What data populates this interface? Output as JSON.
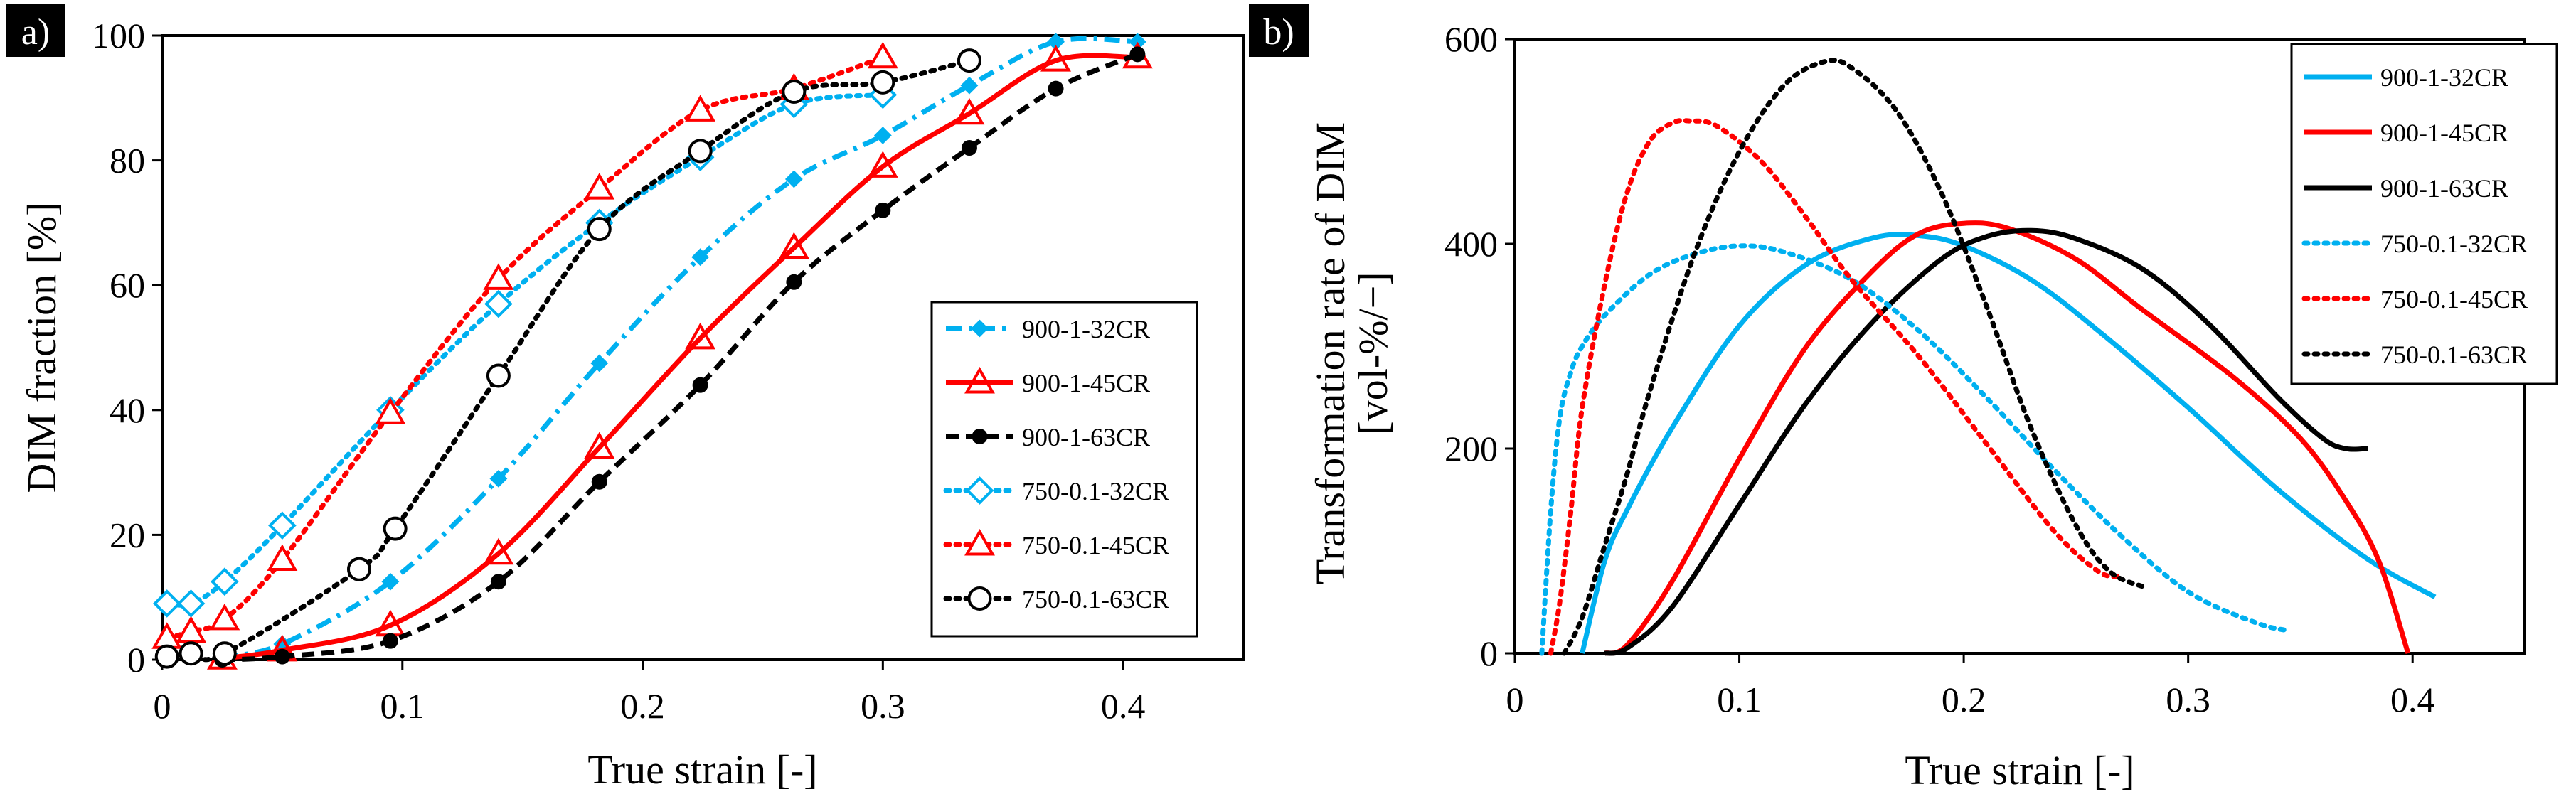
{
  "colors": {
    "blue": "#00b0f0",
    "red": "#ff0000",
    "black": "#000000"
  },
  "chart_data": [
    {
      "panel": "a)",
      "type": "line",
      "xlabel": "True strain [-]",
      "ylabel": "DIM fraction [%]",
      "xlim": [
        0,
        0.45
      ],
      "ylim": [
        0,
        100
      ],
      "xticks": [
        0,
        0.1,
        0.2,
        0.3,
        0.4
      ],
      "xtick_labels": [
        "0",
        "0.1",
        "0.2",
        "0.3",
        "0.4"
      ],
      "yticks": [
        0,
        20,
        40,
        60,
        80,
        100
      ],
      "ytick_labels": [
        "0",
        "20",
        "40",
        "60",
        "80",
        "100"
      ],
      "legend_position": "bottom-right",
      "series": [
        {
          "name": "900-1-32CR",
          "color": "blue",
          "dash": "dashdot",
          "marker": "diamond",
          "x": [
            0.025,
            0.05,
            0.095,
            0.14,
            0.182,
            0.224,
            0.263,
            0.3,
            0.336,
            0.372,
            0.406
          ],
          "y": [
            0.5,
            2.5,
            12.5,
            29,
            47.5,
            64.5,
            77,
            84,
            92,
            99,
            99
          ]
        },
        {
          "name": "900-1-45CR",
          "color": "red",
          "dash": "solid",
          "marker": "triangle",
          "x": [
            0.025,
            0.05,
            0.095,
            0.14,
            0.182,
            0.224,
            0.263,
            0.3,
            0.336,
            0.372,
            0.406
          ],
          "y": [
            0.2,
            1.5,
            5.5,
            17,
            34,
            51.5,
            66,
            79,
            87.5,
            96,
            96.5
          ]
        },
        {
          "name": "900-1-63CR",
          "color": "black",
          "dash": "dashed",
          "marker": "circle-filled",
          "x": [
            0.025,
            0.05,
            0.095,
            0.14,
            0.182,
            0.224,
            0.263,
            0.3,
            0.336,
            0.372,
            0.406
          ],
          "y": [
            0,
            0.5,
            3,
            12.5,
            28.5,
            44,
            60.5,
            72,
            82,
            91.5,
            97
          ]
        },
        {
          "name": "750-0.1-32CR",
          "color": "blue",
          "dash": "dotted",
          "marker": "diamond-open",
          "x": [
            0.002,
            0.012,
            0.026,
            0.05,
            0.095,
            0.14,
            0.182,
            0.224,
            0.263,
            0.3
          ],
          "y": [
            9,
            9,
            12.5,
            21.5,
            40,
            57,
            70,
            80.5,
            89,
            90.5
          ]
        },
        {
          "name": "750-0.1-45CR",
          "color": "red",
          "dash": "dotted",
          "marker": "triangle-open",
          "x": [
            0.002,
            0.012,
            0.026,
            0.05,
            0.095,
            0.14,
            0.182,
            0.224,
            0.263,
            0.3
          ],
          "y": [
            3.5,
            4.5,
            6.5,
            16,
            39.5,
            61,
            75.5,
            88,
            91.5,
            96.5
          ]
        },
        {
          "name": "750-0.1-63CR",
          "color": "black",
          "dash": "dotted",
          "marker": "circle-open",
          "x": [
            0.002,
            0.012,
            0.026,
            0.082,
            0.097,
            0.14,
            0.182,
            0.224,
            0.263,
            0.3,
            0.336
          ],
          "y": [
            0.5,
            1,
            1,
            14.5,
            21,
            45.5,
            69,
            81.5,
            91,
            92.5,
            96
          ]
        }
      ]
    },
    {
      "panel": "b)",
      "type": "line",
      "xlabel": "True strain [-]",
      "ylabel": "Transformation rate of DIM",
      "ylabel_units": "[vol-%/−]",
      "xlim": [
        0,
        0.45
      ],
      "ylim": [
        0,
        600
      ],
      "xticks": [
        0,
        0.1,
        0.2,
        0.3,
        0.4
      ],
      "xtick_labels": [
        "0",
        "0.1",
        "0.2",
        "0.3",
        "0.4"
      ],
      "yticks": [
        0,
        200,
        400,
        600
      ],
      "ytick_labels": [
        "0",
        "200",
        "400",
        "600"
      ],
      "legend_position": "top-right",
      "series": [
        {
          "name": "900-1-32CR",
          "color": "blue",
          "dash": "solid",
          "x": [
            0.03,
            0.04,
            0.05,
            0.07,
            0.1,
            0.13,
            0.16,
            0.18,
            0.2,
            0.23,
            0.26,
            0.3,
            0.34,
            0.38,
            0.41
          ],
          "y": [
            0,
            90,
            140,
            220,
            320,
            380,
            406,
            408,
            398,
            365,
            315,
            240,
            160,
            92,
            55
          ]
        },
        {
          "name": "900-1-45CR",
          "color": "red",
          "dash": "solid",
          "x": [
            0.04,
            0.05,
            0.07,
            0.1,
            0.13,
            0.16,
            0.18,
            0.2,
            0.22,
            0.25,
            0.28,
            0.32,
            0.35,
            0.37,
            0.385,
            0.398
          ],
          "y": [
            0,
            8,
            70,
            190,
            300,
            375,
            410,
            420,
            415,
            385,
            335,
            270,
            210,
            150,
            90,
            0
          ]
        },
        {
          "name": "900-1-63CR",
          "color": "black",
          "dash": "solid",
          "x": [
            0.04,
            0.05,
            0.07,
            0.1,
            0.13,
            0.16,
            0.19,
            0.21,
            0.23,
            0.25,
            0.28,
            0.31,
            0.34,
            0.36,
            0.37,
            0.38
          ],
          "y": [
            0,
            5,
            45,
            145,
            245,
            325,
            385,
            407,
            413,
            405,
            375,
            320,
            250,
            210,
            200,
            200
          ]
        },
        {
          "name": "750-0.1-32CR",
          "color": "blue",
          "dash": "dotted",
          "x": [
            0.012,
            0.016,
            0.02,
            0.025,
            0.03,
            0.04,
            0.06,
            0.08,
            0.1,
            0.12,
            0.15,
            0.18,
            0.21,
            0.24,
            0.27,
            0.3,
            0.33,
            0.345
          ],
          "y": [
            0,
            140,
            230,
            275,
            300,
            330,
            370,
            390,
            398,
            392,
            365,
            315,
            250,
            180,
            115,
            60,
            30,
            22
          ]
        },
        {
          "name": "750-0.1-45CR",
          "color": "red",
          "dash": "dotted",
          "x": [
            0.016,
            0.02,
            0.025,
            0.03,
            0.04,
            0.05,
            0.06,
            0.07,
            0.078,
            0.09,
            0.11,
            0.13,
            0.15,
            0.18,
            0.21,
            0.24,
            0.26,
            0.27
          ],
          "y": [
            0,
            50,
            140,
            240,
            360,
            450,
            500,
            518,
            520,
            515,
            480,
            425,
            365,
            290,
            205,
            120,
            80,
            75
          ]
        },
        {
          "name": "750-0.1-63CR",
          "color": "black",
          "dash": "dotted",
          "x": [
            0.022,
            0.03,
            0.04,
            0.05,
            0.06,
            0.08,
            0.1,
            0.12,
            0.138,
            0.15,
            0.17,
            0.19,
            0.21,
            0.23,
            0.25,
            0.265,
            0.28
          ],
          "y": [
            0,
            35,
            105,
            175,
            255,
            390,
            490,
            555,
            578,
            572,
            530,
            450,
            340,
            220,
            125,
            80,
            65
          ]
        }
      ]
    }
  ]
}
